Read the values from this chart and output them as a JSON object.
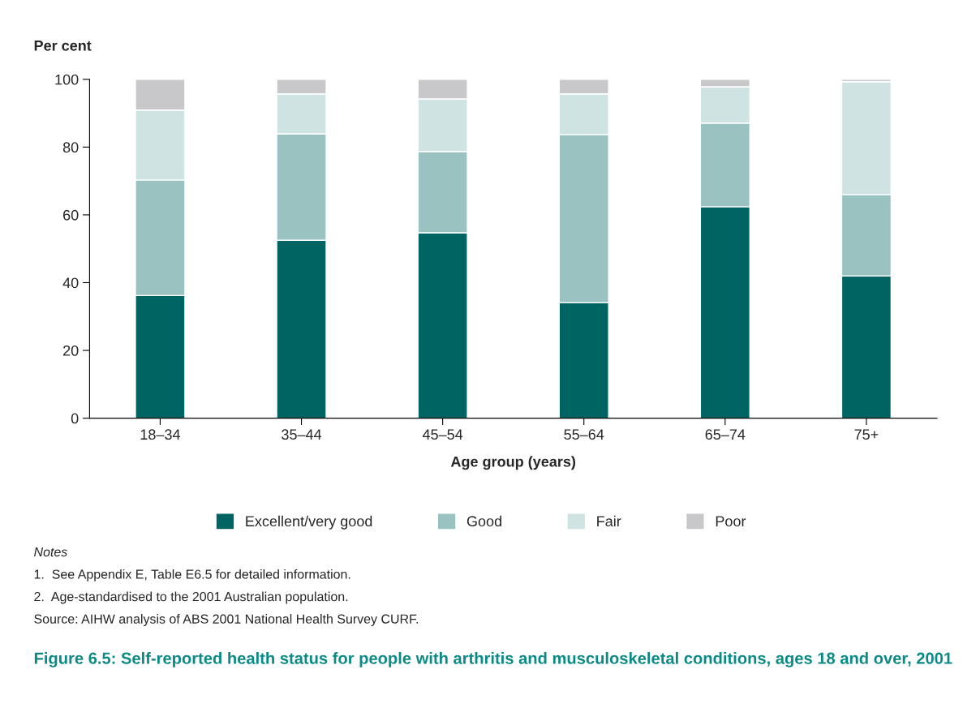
{
  "chart_data": {
    "type": "bar",
    "stacked": true,
    "title": "Figure 6.5: Self-reported health status for people with arthritis and musculoskeletal conditions, ages 18 and over, 2001",
    "xlabel": "Age group (years)",
    "ylabel": "Per cent",
    "categories": [
      "18–34",
      "35–44",
      "45–54",
      "55–64",
      "65–74",
      "75+"
    ],
    "series": [
      {
        "name": "Excellent/very good",
        "color": "#006462",
        "values": [
          36.2,
          52.5,
          54.7,
          34.1,
          62.4,
          42.0
        ]
      },
      {
        "name": "Good",
        "color": "#99c2c1",
        "values": [
          34.1,
          31.4,
          24.0,
          49.6,
          24.7,
          24.0
        ]
      },
      {
        "name": "Fair",
        "color": "#cfe3e2",
        "values": [
          20.6,
          11.8,
          15.5,
          12.0,
          10.7,
          33.3
        ]
      },
      {
        "name": "Poor",
        "color": "#c8c8ca",
        "values": [
          9.1,
          4.3,
          5.8,
          4.3,
          2.2,
          0.7
        ]
      }
    ],
    "ylim": [
      0,
      100
    ],
    "yticks": [
      0,
      20,
      40,
      60,
      80,
      100
    ],
    "grid": false,
    "legend": "bottom",
    "annotations": [
      "Notes",
      "1.  See Appendix E, Table E6.5 for detailed information.",
      "2.  Age-standardised to the 2001 Australian population.",
      "Source: AIHW analysis of ABS 2001 National Health Survey CURF."
    ]
  }
}
